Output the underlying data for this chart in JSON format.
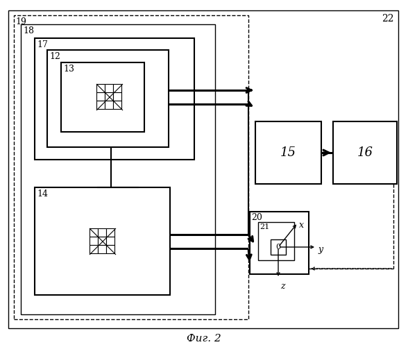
{
  "title": "Фиг. 2",
  "label_22": "22",
  "label_19": "19",
  "label_18": "18",
  "label_17": "17",
  "label_12": "12",
  "label_13": "13",
  "label_14": "14",
  "label_15": "15",
  "label_16": "16",
  "label_20": "20",
  "label_21": "21",
  "label_0": "0",
  "label_x": "x",
  "label_y": "y",
  "label_z": "z",
  "bg_color": "#ffffff",
  "line_color": "#000000"
}
